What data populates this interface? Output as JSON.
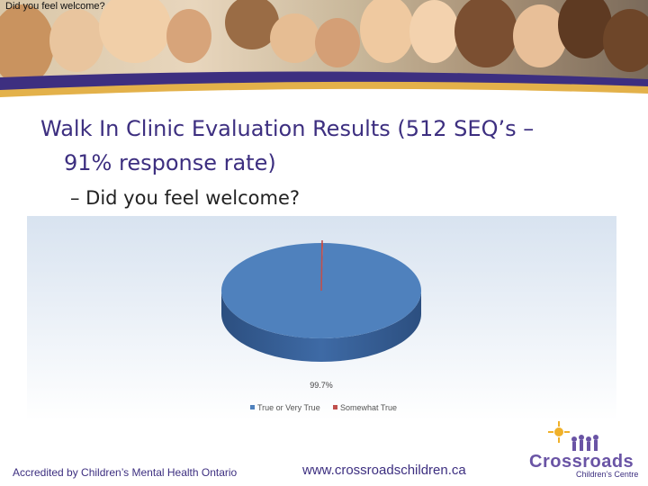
{
  "window_title": "Did you feel welcome?",
  "slide": {
    "title_line1": "Walk In Clinic Evaluation Results (512 SEQ’s –",
    "title_line2": "91% response rate)",
    "sub_bullet": "– Did you feel welcome?"
  },
  "chart_data": {
    "type": "pie",
    "title": "",
    "labels": [
      "True or Very True",
      "Somewhat True"
    ],
    "values": [
      99.7,
      0.3
    ],
    "colors": [
      "#4f81bd",
      "#c0504d"
    ],
    "data_labels": [
      "99.7%",
      ""
    ],
    "legend": "bottom",
    "style": "3d"
  },
  "footer": {
    "accreditation": "Accredited by Children’s Mental Health Ontario",
    "url": "www.crossroadschildren.ca",
    "logo_name": "Crossroads",
    "logo_subtitle": "Children’s Centre"
  }
}
